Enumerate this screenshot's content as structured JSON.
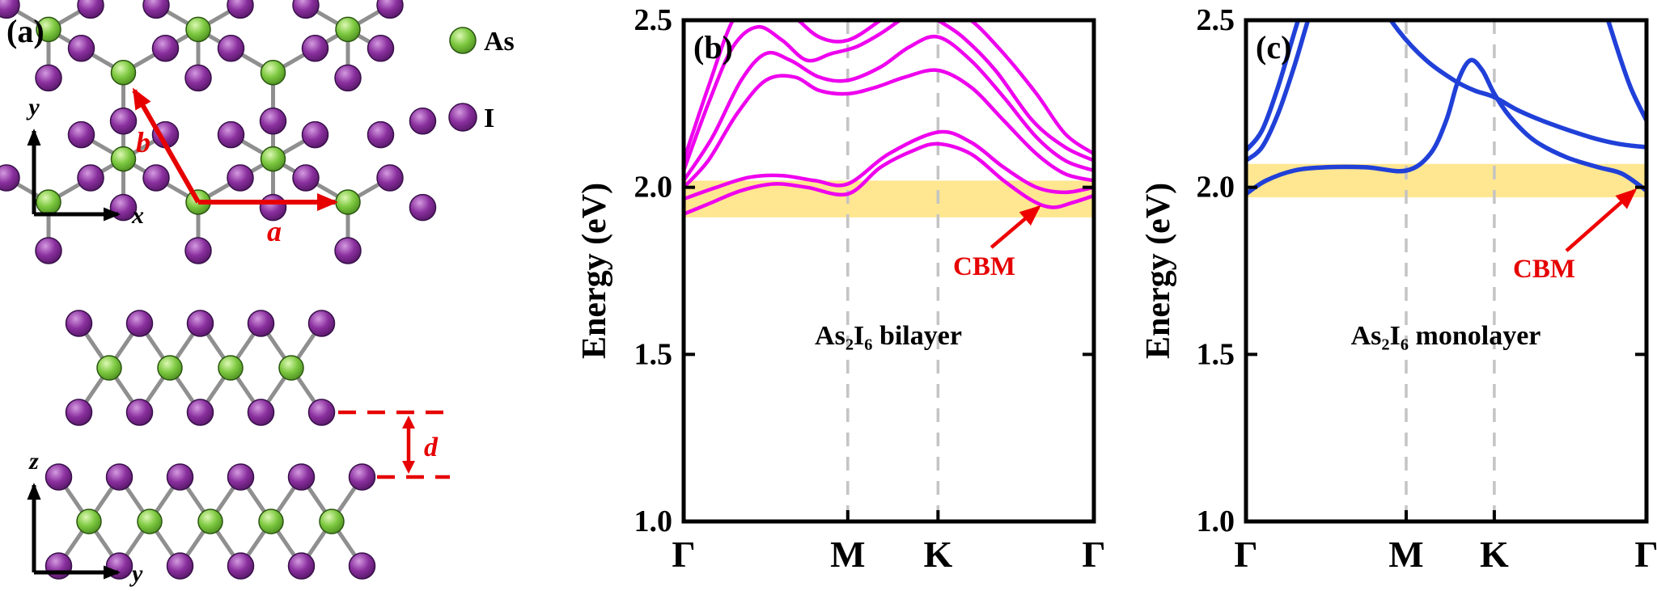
{
  "panel_a": {
    "label": "(a)",
    "legend": {
      "as": "As",
      "i": "I"
    },
    "axes_top": {
      "vertical": "y",
      "horizontal": "x"
    },
    "axes_side": {
      "vertical": "z",
      "horizontal": "y"
    },
    "vectors": {
      "a": "a",
      "b": "b"
    },
    "distance_label": "d",
    "colors": {
      "as_atom": "#6abf3a",
      "i_atom": "#8a2f9e",
      "bond": "#8f8f8f",
      "annotation": "#e60000",
      "axis": "#000000"
    }
  },
  "chart_data": [
    {
      "type": "line",
      "panel": "(b)",
      "title": "As₂I₆ bilayer",
      "ylabel": "Energy (eV)",
      "ylim": [
        1.0,
        2.5
      ],
      "yticks": [
        "1.0",
        "1.5",
        "2.0",
        "2.5"
      ],
      "ytick_values": [
        1.0,
        1.5,
        2.0,
        2.5
      ],
      "xticks": [
        "Γ",
        "M",
        "K",
        "Γ"
      ],
      "xtick_positions": [
        0,
        0.4,
        0.62,
        1
      ],
      "grid_dashed_at": [
        0.4,
        0.62
      ],
      "grid_color": "#c4c4c4",
      "line_color": "#ee00ee",
      "line_width": 4.5,
      "highlight_band_eV": [
        1.91,
        2.02
      ],
      "highlight_color": "#ffe690",
      "annotation": {
        "label": "CBM",
        "color": "#ee0000",
        "arrow_from": {
          "k": 0.75,
          "E": 1.82
        },
        "arrow_to": {
          "k": 0.865,
          "E": 1.94
        }
      },
      "series": [
        {
          "name": "band1",
          "points": [
            [
              0,
              1.92
            ],
            [
              0.06,
              1.95
            ],
            [
              0.14,
              1.99
            ],
            [
              0.22,
              2.01
            ],
            [
              0.3,
              2.0
            ],
            [
              0.4,
              1.98
            ],
            [
              0.48,
              2.06
            ],
            [
              0.56,
              2.11
            ],
            [
              0.62,
              2.13
            ],
            [
              0.7,
              2.1
            ],
            [
              0.78,
              2.02
            ],
            [
              0.85,
              1.96
            ],
            [
              0.9,
              1.94
            ],
            [
              0.95,
              1.955
            ],
            [
              1,
              1.975
            ]
          ]
        },
        {
          "name": "band2",
          "points": [
            [
              0,
              1.965
            ],
            [
              0.08,
              2.0
            ],
            [
              0.16,
              2.03
            ],
            [
              0.24,
              2.035
            ],
            [
              0.32,
              2.02
            ],
            [
              0.4,
              2.01
            ],
            [
              0.5,
              2.1
            ],
            [
              0.62,
              2.165
            ],
            [
              0.7,
              2.135
            ],
            [
              0.78,
              2.06
            ],
            [
              0.86,
              2.0
            ],
            [
              0.93,
              1.985
            ],
            [
              1,
              2.0
            ]
          ]
        },
        {
          "name": "band3",
          "points": [
            [
              0,
              2.0
            ],
            [
              0.06,
              2.08
            ],
            [
              0.13,
              2.22
            ],
            [
              0.2,
              2.32
            ],
            [
              0.27,
              2.33
            ],
            [
              0.33,
              2.29
            ],
            [
              0.4,
              2.28
            ],
            [
              0.47,
              2.3
            ],
            [
              0.54,
              2.33
            ],
            [
              0.62,
              2.35
            ],
            [
              0.7,
              2.3
            ],
            [
              0.78,
              2.2
            ],
            [
              0.86,
              2.1
            ],
            [
              0.93,
              2.04
            ],
            [
              1,
              2.02
            ]
          ]
        },
        {
          "name": "band4",
          "points": [
            [
              0,
              2.02
            ],
            [
              0.07,
              2.15
            ],
            [
              0.14,
              2.32
            ],
            [
              0.2,
              2.4
            ],
            [
              0.26,
              2.38
            ],
            [
              0.33,
              2.33
            ],
            [
              0.4,
              2.32
            ],
            [
              0.48,
              2.36
            ],
            [
              0.55,
              2.42
            ],
            [
              0.62,
              2.45
            ],
            [
              0.7,
              2.38
            ],
            [
              0.78,
              2.27
            ],
            [
              0.86,
              2.15
            ],
            [
              0.93,
              2.08
            ],
            [
              1,
              2.05
            ]
          ]
        },
        {
          "name": "band5",
          "points": [
            [
              0,
              2.05
            ],
            [
              0.06,
              2.25
            ],
            [
              0.12,
              2.42
            ],
            [
              0.18,
              2.48
            ],
            [
              0.24,
              2.44
            ],
            [
              0.3,
              2.38
            ],
            [
              0.36,
              2.4
            ],
            [
              0.42,
              2.42
            ],
            [
              0.48,
              2.46
            ],
            [
              0.54,
              2.51
            ],
            [
              0.58,
              2.53
            ],
            [
              0.62,
              2.5
            ],
            [
              0.68,
              2.45
            ],
            [
              0.76,
              2.35
            ],
            [
              0.85,
              2.2
            ],
            [
              0.93,
              2.12
            ],
            [
              1,
              2.08
            ]
          ]
        },
        {
          "name": "band6",
          "points": [
            [
              0,
              2.08
            ],
            [
              0.06,
              2.3
            ],
            [
              0.12,
              2.5
            ],
            [
              0.18,
              2.58
            ],
            [
              0.26,
              2.52
            ],
            [
              0.33,
              2.45
            ],
            [
              0.4,
              2.44
            ],
            [
              0.48,
              2.5
            ],
            [
              0.55,
              2.56
            ],
            [
              0.62,
              2.55
            ],
            [
              0.7,
              2.5
            ],
            [
              0.78,
              2.4
            ],
            [
              0.86,
              2.28
            ],
            [
              0.93,
              2.16
            ],
            [
              1,
              2.1
            ]
          ]
        }
      ]
    },
    {
      "type": "line",
      "panel": "(c)",
      "title": "As₂I₆ monolayer",
      "ylabel": "Energy (eV)",
      "ylim": [
        1.0,
        2.5
      ],
      "yticks": [
        "1.0",
        "1.5",
        "2.0",
        "2.5"
      ],
      "ytick_values": [
        1.0,
        1.5,
        2.0,
        2.5
      ],
      "xticks": [
        "Γ",
        "M",
        "K",
        "Γ"
      ],
      "xtick_positions": [
        0,
        0.4,
        0.62,
        1
      ],
      "grid_dashed_at": [
        0.4,
        0.62
      ],
      "grid_color": "#c4c4c4",
      "line_color": "#2040d8",
      "line_width": 5.5,
      "highlight_band_eV": [
        1.97,
        2.07
      ],
      "highlight_color": "#ffe690",
      "annotation": {
        "label": "CBM",
        "color": "#ee0000",
        "arrow_from": {
          "k": 0.8,
          "E": 1.81
        },
        "arrow_to": {
          "k": 0.97,
          "E": 1.99
        }
      },
      "series": [
        {
          "name": "band1",
          "points": [
            [
              0,
              1.98
            ],
            [
              0.05,
              2.02
            ],
            [
              0.12,
              2.05
            ],
            [
              0.2,
              2.06
            ],
            [
              0.3,
              2.06
            ],
            [
              0.4,
              2.05
            ],
            [
              0.46,
              2.1
            ],
            [
              0.5,
              2.2
            ],
            [
              0.53,
              2.32
            ],
            [
              0.56,
              2.38
            ],
            [
              0.59,
              2.35
            ],
            [
              0.62,
              2.28
            ],
            [
              0.66,
              2.21
            ],
            [
              0.72,
              2.14
            ],
            [
              0.8,
              2.09
            ],
            [
              0.88,
              2.06
            ],
            [
              0.94,
              2.04
            ],
            [
              1,
              1.99
            ]
          ]
        },
        {
          "name": "band2",
          "points": [
            [
              0,
              2.08
            ],
            [
              0.04,
              2.12
            ],
            [
              0.08,
              2.22
            ],
            [
              0.12,
              2.36
            ],
            [
              0.16,
              2.52
            ],
            [
              0.2,
              2.66
            ],
            [
              0.24,
              2.74
            ],
            [
              0.28,
              2.68
            ],
            [
              0.32,
              2.58
            ],
            [
              0.38,
              2.47
            ],
            [
              0.45,
              2.38
            ],
            [
              0.52,
              2.32
            ],
            [
              0.57,
              2.29
            ],
            [
              0.62,
              2.27
            ],
            [
              0.68,
              2.23
            ],
            [
              0.76,
              2.19
            ],
            [
              0.86,
              2.15
            ],
            [
              0.93,
              2.13
            ],
            [
              1,
              2.12
            ]
          ]
        },
        {
          "name": "band3",
          "points": [
            [
              0,
              2.11
            ],
            [
              0.04,
              2.17
            ],
            [
              0.08,
              2.3
            ],
            [
              0.12,
              2.46
            ],
            [
              0.16,
              2.62
            ],
            [
              0.2,
              2.78
            ]
          ]
        },
        {
          "name": "band4",
          "points": [
            [
              0.84,
              2.8
            ],
            [
              0.88,
              2.6
            ],
            [
              0.92,
              2.44
            ],
            [
              0.96,
              2.3
            ],
            [
              1,
              2.2
            ]
          ]
        }
      ]
    }
  ]
}
